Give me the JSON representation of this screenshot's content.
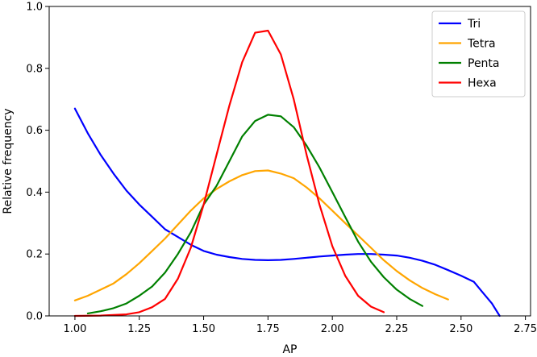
{
  "chart_data": {
    "type": "line",
    "xlabel": "AP",
    "ylabel": "Relative frequency",
    "xlim": [
      0.9,
      2.77
    ],
    "ylim": [
      0.0,
      1.0
    ],
    "xticks": [
      "1.00",
      "1.25",
      "1.50",
      "1.75",
      "2.00",
      "2.25",
      "2.50",
      "2.75"
    ],
    "yticks": [
      "0.0",
      "0.2",
      "0.4",
      "0.6",
      "0.8",
      "1.0"
    ],
    "grid": false,
    "legend_position": "top-right",
    "series": [
      {
        "name": "Tri",
        "color": "#0000ff",
        "points": [
          [
            1.0,
            0.67
          ],
          [
            1.05,
            0.59
          ],
          [
            1.1,
            0.52
          ],
          [
            1.15,
            0.46
          ],
          [
            1.2,
            0.405
          ],
          [
            1.25,
            0.36
          ],
          [
            1.3,
            0.32
          ],
          [
            1.35,
            0.28
          ],
          [
            1.4,
            0.255
          ],
          [
            1.45,
            0.23
          ],
          [
            1.5,
            0.21
          ],
          [
            1.55,
            0.198
          ],
          [
            1.6,
            0.19
          ],
          [
            1.65,
            0.184
          ],
          [
            1.7,
            0.181
          ],
          [
            1.75,
            0.18
          ],
          [
            1.8,
            0.181
          ],
          [
            1.85,
            0.184
          ],
          [
            1.9,
            0.188
          ],
          [
            1.95,
            0.192
          ],
          [
            2.0,
            0.195
          ],
          [
            2.05,
            0.198
          ],
          [
            2.1,
            0.2
          ],
          [
            2.15,
            0.2
          ],
          [
            2.2,
            0.198
          ],
          [
            2.25,
            0.195
          ],
          [
            2.3,
            0.188
          ],
          [
            2.35,
            0.178
          ],
          [
            2.4,
            0.165
          ],
          [
            2.45,
            0.148
          ],
          [
            2.5,
            0.13
          ],
          [
            2.55,
            0.11
          ],
          [
            2.58,
            0.08
          ],
          [
            2.62,
            0.04
          ],
          [
            2.65,
            0.0
          ]
        ]
      },
      {
        "name": "Tetra",
        "color": "#ffa500",
        "points": [
          [
            1.0,
            0.05
          ],
          [
            1.05,
            0.065
          ],
          [
            1.1,
            0.085
          ],
          [
            1.15,
            0.105
          ],
          [
            1.2,
            0.135
          ],
          [
            1.25,
            0.17
          ],
          [
            1.3,
            0.21
          ],
          [
            1.35,
            0.25
          ],
          [
            1.4,
            0.295
          ],
          [
            1.45,
            0.34
          ],
          [
            1.5,
            0.38
          ],
          [
            1.55,
            0.41
          ],
          [
            1.6,
            0.435
          ],
          [
            1.65,
            0.455
          ],
          [
            1.7,
            0.468
          ],
          [
            1.75,
            0.47
          ],
          [
            1.8,
            0.46
          ],
          [
            1.85,
            0.445
          ],
          [
            1.9,
            0.415
          ],
          [
            1.95,
            0.38
          ],
          [
            2.0,
            0.34
          ],
          [
            2.05,
            0.3
          ],
          [
            2.1,
            0.26
          ],
          [
            2.15,
            0.22
          ],
          [
            2.2,
            0.18
          ],
          [
            2.25,
            0.145
          ],
          [
            2.3,
            0.115
          ],
          [
            2.35,
            0.09
          ],
          [
            2.4,
            0.07
          ],
          [
            2.45,
            0.053
          ]
        ]
      },
      {
        "name": "Penta",
        "color": "#008000",
        "points": [
          [
            1.05,
            0.008
          ],
          [
            1.1,
            0.015
          ],
          [
            1.15,
            0.025
          ],
          [
            1.2,
            0.04
          ],
          [
            1.25,
            0.065
          ],
          [
            1.3,
            0.095
          ],
          [
            1.35,
            0.14
          ],
          [
            1.4,
            0.2
          ],
          [
            1.45,
            0.27
          ],
          [
            1.5,
            0.36
          ],
          [
            1.55,
            0.42
          ],
          [
            1.6,
            0.5
          ],
          [
            1.65,
            0.58
          ],
          [
            1.7,
            0.63
          ],
          [
            1.75,
            0.65
          ],
          [
            1.8,
            0.645
          ],
          [
            1.85,
            0.61
          ],
          [
            1.9,
            0.55
          ],
          [
            1.95,
            0.48
          ],
          [
            2.0,
            0.4
          ],
          [
            2.05,
            0.32
          ],
          [
            2.1,
            0.24
          ],
          [
            2.15,
            0.175
          ],
          [
            2.2,
            0.125
          ],
          [
            2.25,
            0.085
          ],
          [
            2.3,
            0.055
          ],
          [
            2.35,
            0.032
          ]
        ]
      },
      {
        "name": "Hexa",
        "color": "#ff0000",
        "points": [
          [
            1.0,
            0.0
          ],
          [
            1.1,
            0.001
          ],
          [
            1.2,
            0.005
          ],
          [
            1.25,
            0.012
          ],
          [
            1.3,
            0.028
          ],
          [
            1.35,
            0.055
          ],
          [
            1.4,
            0.12
          ],
          [
            1.45,
            0.22
          ],
          [
            1.5,
            0.36
          ],
          [
            1.55,
            0.52
          ],
          [
            1.6,
            0.68
          ],
          [
            1.65,
            0.82
          ],
          [
            1.7,
            0.915
          ],
          [
            1.75,
            0.922
          ],
          [
            1.8,
            0.845
          ],
          [
            1.85,
            0.7
          ],
          [
            1.9,
            0.52
          ],
          [
            1.95,
            0.36
          ],
          [
            2.0,
            0.225
          ],
          [
            2.05,
            0.13
          ],
          [
            2.1,
            0.065
          ],
          [
            2.15,
            0.03
          ],
          [
            2.2,
            0.012
          ]
        ]
      }
    ]
  }
}
